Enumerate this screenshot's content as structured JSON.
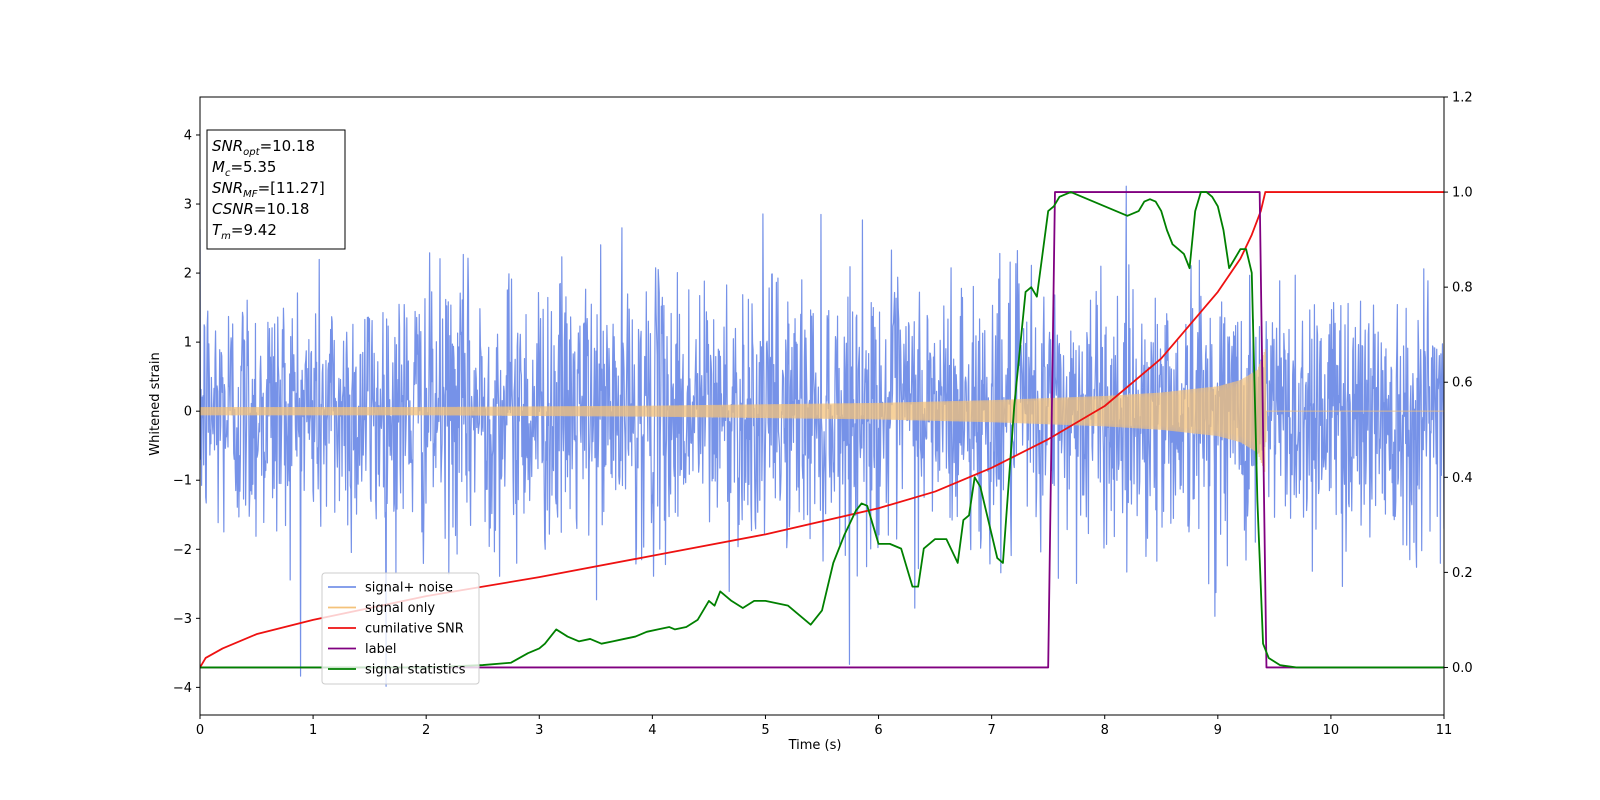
{
  "chart_data": {
    "type": "line",
    "title": "",
    "xlabel": "Time (s)",
    "ylabel": "Whitened strain",
    "y2label": "",
    "xlim": [
      0,
      11
    ],
    "ylim": [
      -4.4,
      4.55
    ],
    "y2lim": [
      -0.1,
      1.2
    ],
    "xticks": [
      0,
      1,
      2,
      3,
      4,
      5,
      6,
      7,
      8,
      9,
      10,
      11
    ],
    "yticks": [
      -4,
      -3,
      -2,
      -1,
      0,
      1,
      2,
      3,
      4
    ],
    "yticks_labels": [
      "−4",
      "−3",
      "−2",
      "−1",
      "0",
      "1",
      "2",
      "3",
      "4"
    ],
    "y2ticks": [
      0.0,
      0.2,
      0.4,
      0.6,
      0.8,
      1.0,
      1.2
    ],
    "y2ticks_labels": [
      "0.0",
      "0.2",
      "0.4",
      "0.6",
      "0.8",
      "1.0",
      "1.2"
    ],
    "grid": false,
    "legend_position": "lower-left",
    "info_box": {
      "lines": [
        {
          "var": "SNR",
          "sub": "opt",
          "value": "=10.18"
        },
        {
          "var": "M",
          "sub": "c",
          "value": "=5.35"
        },
        {
          "var": "SNR",
          "sub": "MF",
          "value": "=[11.27]"
        },
        {
          "var": "CSNR",
          "sub": "",
          "value": "=10.18"
        },
        {
          "var": "T",
          "sub": "m",
          "value": "=9.42"
        }
      ]
    },
    "series": [
      {
        "name": "signal+ noise",
        "axis": "left",
        "color": "#7692e8",
        "kind": "noise",
        "std": 0.95,
        "min": -4.0,
        "max": 4.17,
        "x_range": [
          0,
          11
        ]
      },
      {
        "name": "signal only",
        "axis": "left",
        "color": "#f4c27a",
        "kind": "chirp",
        "envelope": [
          [
            0,
            0.06
          ],
          [
            2,
            0.06
          ],
          [
            4,
            0.08
          ],
          [
            6,
            0.12
          ],
          [
            7,
            0.16
          ],
          [
            8,
            0.22
          ],
          [
            8.5,
            0.27
          ],
          [
            9,
            0.36
          ],
          [
            9.2,
            0.45
          ],
          [
            9.35,
            0.6
          ],
          [
            9.42,
            0.9
          ],
          [
            9.43,
            0.0
          ],
          [
            11,
            0.0
          ]
        ]
      },
      {
        "name": "cumilative SNR",
        "axis": "right",
        "color": "#ee1111",
        "kind": "line",
        "x": [
          0,
          0.05,
          0.2,
          0.5,
          1.0,
          2.0,
          3.0,
          4.0,
          5.0,
          6.0,
          6.5,
          7.0,
          7.5,
          8.0,
          8.5,
          9.0,
          9.2,
          9.3,
          9.38,
          9.42,
          11.0
        ],
        "y": [
          0.0,
          0.02,
          0.04,
          0.07,
          0.1,
          0.15,
          0.19,
          0.235,
          0.28,
          0.335,
          0.37,
          0.42,
          0.48,
          0.55,
          0.65,
          0.79,
          0.86,
          0.91,
          0.96,
          1.0,
          1.0
        ]
      },
      {
        "name": "label",
        "axis": "right",
        "color": "#800080",
        "kind": "line",
        "x": [
          0,
          7.5,
          7.56,
          9.37,
          9.43,
          11.0
        ],
        "y": [
          0.0,
          0.0,
          1.0,
          1.0,
          0.0,
          0.0
        ]
      },
      {
        "name": "signal statistics",
        "axis": "right",
        "color": "#008000",
        "kind": "line",
        "x": [
          0,
          0.3,
          1.0,
          2.0,
          2.5,
          2.75,
          2.9,
          3.0,
          3.05,
          3.15,
          3.25,
          3.35,
          3.45,
          3.55,
          3.65,
          3.75,
          3.85,
          3.95,
          4.05,
          4.15,
          4.2,
          4.3,
          4.4,
          4.5,
          4.55,
          4.6,
          4.7,
          4.8,
          4.9,
          5.0,
          5.1,
          5.2,
          5.3,
          5.4,
          5.5,
          5.6,
          5.7,
          5.8,
          5.85,
          5.9,
          5.95,
          6.0,
          6.1,
          6.2,
          6.3,
          6.35,
          6.4,
          6.5,
          6.6,
          6.7,
          6.75,
          6.8,
          6.85,
          6.9,
          6.95,
          7.0,
          7.05,
          7.1,
          7.2,
          7.25,
          7.3,
          7.35,
          7.4,
          7.45,
          7.5,
          7.55,
          7.6,
          7.7,
          7.8,
          7.9,
          8.0,
          8.1,
          8.2,
          8.3,
          8.35,
          8.4,
          8.45,
          8.5,
          8.55,
          8.6,
          8.65,
          8.7,
          8.75,
          8.8,
          8.85,
          8.9,
          8.95,
          9.0,
          9.05,
          9.1,
          9.2,
          9.25,
          9.3,
          9.35,
          9.4,
          9.45,
          9.55,
          9.7,
          10.0,
          11.0
        ],
        "y": [
          0.0,
          0.0,
          0.0,
          0.0,
          0.005,
          0.01,
          0.03,
          0.04,
          0.05,
          0.08,
          0.065,
          0.055,
          0.06,
          0.05,
          0.055,
          0.06,
          0.065,
          0.075,
          0.08,
          0.085,
          0.08,
          0.085,
          0.1,
          0.14,
          0.13,
          0.16,
          0.14,
          0.125,
          0.14,
          0.14,
          0.135,
          0.13,
          0.11,
          0.09,
          0.12,
          0.22,
          0.28,
          0.33,
          0.345,
          0.34,
          0.3,
          0.26,
          0.26,
          0.25,
          0.17,
          0.17,
          0.25,
          0.27,
          0.27,
          0.22,
          0.31,
          0.32,
          0.4,
          0.38,
          0.33,
          0.28,
          0.23,
          0.22,
          0.55,
          0.67,
          0.79,
          0.8,
          0.78,
          0.87,
          0.96,
          0.97,
          0.99,
          1.0,
          0.99,
          0.98,
          0.97,
          0.96,
          0.95,
          0.96,
          0.98,
          0.985,
          0.98,
          0.96,
          0.92,
          0.89,
          0.88,
          0.87,
          0.84,
          0.96,
          1.0,
          1.0,
          0.99,
          0.97,
          0.92,
          0.84,
          0.88,
          0.88,
          0.83,
          0.35,
          0.05,
          0.02,
          0.005,
          0.0,
          0.0,
          0.0
        ]
      }
    ]
  }
}
